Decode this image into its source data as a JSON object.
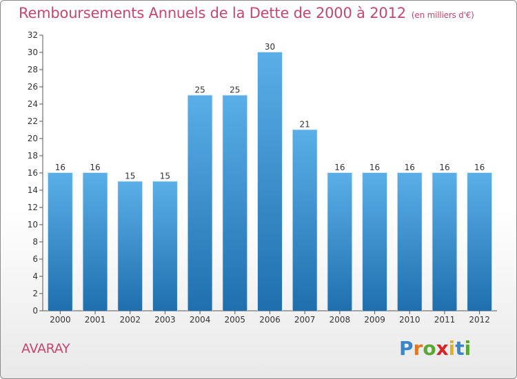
{
  "title": "Remboursements Annuels de la Dette de 2000 à 2012",
  "unit": "(en milliers d'€)",
  "commune": "AVARAY",
  "logo": {
    "letters": [
      "P",
      "r",
      "o",
      "x",
      "i",
      "t",
      "i"
    ],
    "colors": [
      "#3a86c8",
      "#e07a1f",
      "#5aa832",
      "#d6262b",
      "#e0b21f",
      "#3a86c8",
      "#5aa832"
    ]
  },
  "colors": {
    "bar_top": "#5aafe8",
    "bar_bottom": "#1f6fae",
    "accent": "#c8466e"
  },
  "chart_data": {
    "type": "bar",
    "categories": [
      "2000",
      "2001",
      "2002",
      "2003",
      "2004",
      "2005",
      "2006",
      "2007",
      "2008",
      "2009",
      "2010",
      "2011",
      "2012"
    ],
    "values": [
      16,
      16,
      15,
      15,
      25,
      25,
      30,
      21,
      16,
      16,
      16,
      16,
      16
    ],
    "data_labels": [
      "16",
      "16",
      "15",
      "15",
      "25",
      "25",
      "30",
      "21",
      "16",
      "16",
      "16",
      "16",
      "16"
    ],
    "yticks": [
      0,
      2,
      4,
      6,
      8,
      10,
      12,
      14,
      16,
      18,
      20,
      22,
      24,
      26,
      28,
      30,
      32
    ],
    "ylim": [
      0,
      32
    ],
    "grid": false
  }
}
